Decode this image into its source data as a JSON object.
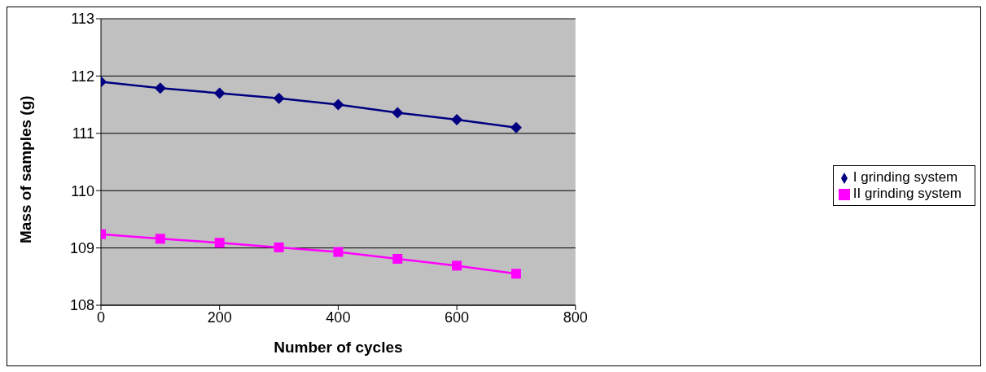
{
  "chart_data": {
    "type": "line",
    "xlabel": "Number of cycles",
    "ylabel": "Mass of samples (g)",
    "x": [
      0,
      100,
      200,
      300,
      400,
      500,
      600,
      700
    ],
    "xlim": [
      0,
      800
    ],
    "xticks": [
      0,
      200,
      400,
      600,
      800
    ],
    "ylim": [
      108,
      113
    ],
    "yticks": [
      108,
      109,
      110,
      111,
      112,
      113
    ],
    "grid": "y",
    "legend": "right",
    "line_style": "solid",
    "series": [
      {
        "name": "I grinding system",
        "color": "#000080",
        "marker": "diamond",
        "values": [
          111.9,
          111.79,
          111.7,
          111.61,
          111.5,
          111.36,
          111.24,
          111.1
        ]
      },
      {
        "name": "II grinding system",
        "color": "#ff00ff",
        "marker": "square",
        "values": [
          109.24,
          109.16,
          109.09,
          109.01,
          108.93,
          108.81,
          108.69,
          108.55
        ]
      }
    ]
  }
}
